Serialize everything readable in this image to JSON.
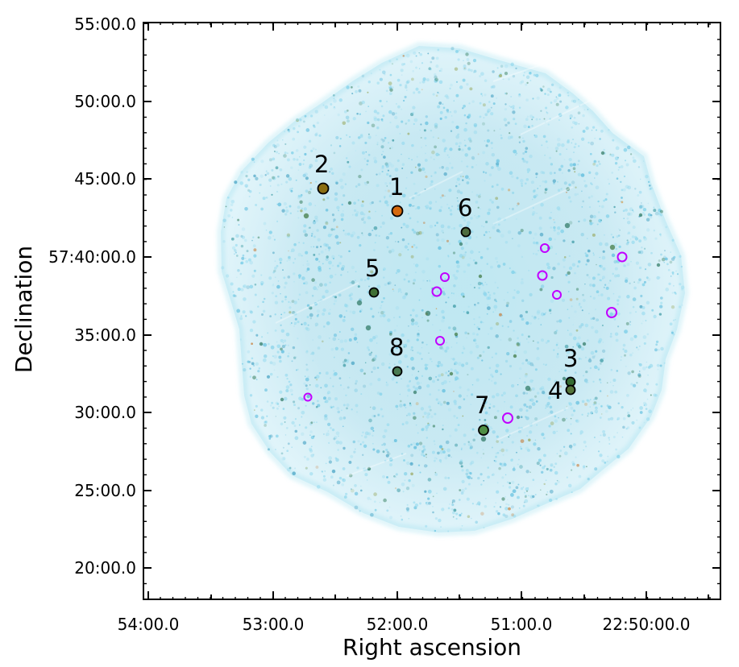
{
  "image": {
    "description_type": "astronomical x-ray / multi-band sky image",
    "colors": {
      "cyan_emission": "#52bfe0",
      "teal_emission": "#2d8f9b",
      "orange_emission": "#d67a1a",
      "dark_green_source": "#2f5f2f",
      "magenta_marker": "#c100ff",
      "axis_black": "#000000"
    }
  },
  "axes": {
    "x_label": "Right ascension",
    "y_label": "Declination",
    "x_ticks": [
      "54:00.0",
      "53:00.0",
      "52:00.0",
      "51:00.0",
      "22:50:00.0"
    ],
    "y_ticks": [
      "55:00.0",
      "50:00.0",
      "45:00.0",
      "57:40:00.0",
      "35:00.0",
      "30:00.0",
      "25:00.0",
      "20:00.0"
    ]
  },
  "sources": {
    "labels": [
      "1",
      "2",
      "3",
      "4",
      "5",
      "6",
      "7",
      "8"
    ]
  }
}
